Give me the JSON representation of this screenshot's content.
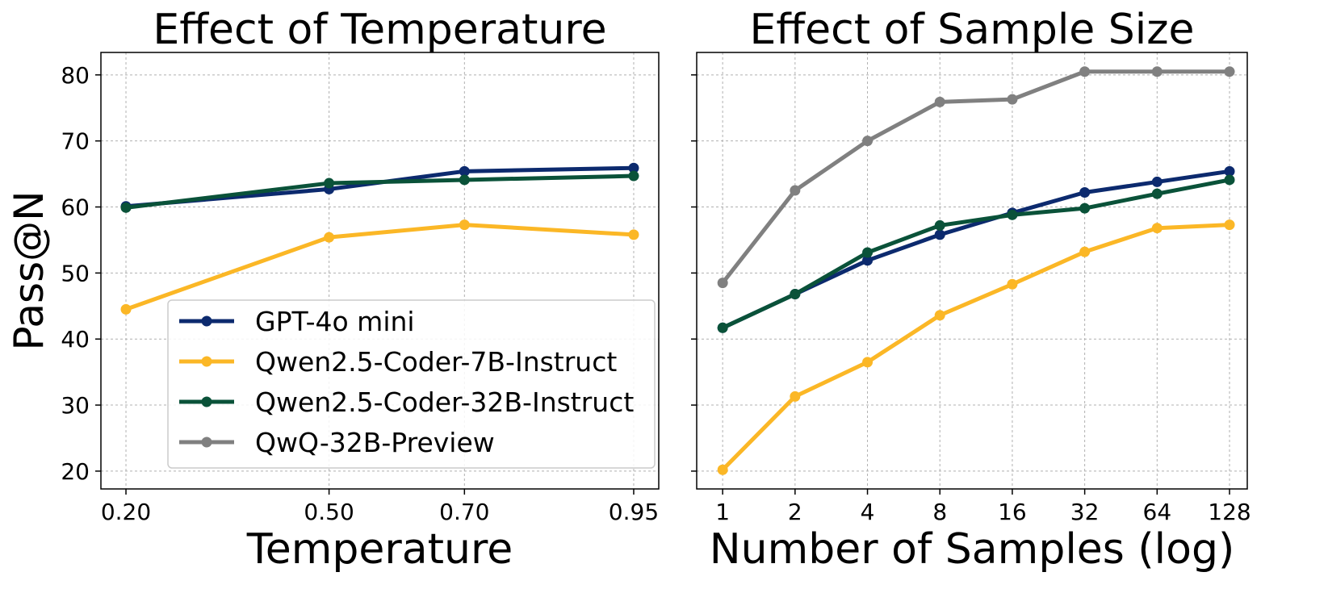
{
  "chart_data": [
    {
      "type": "line",
      "title": "Effect of Temperature",
      "x_label": "Temperature",
      "y_label": "Pass@N",
      "x": [
        0.2,
        0.5,
        0.7,
        0.95
      ],
      "xlim": [
        0.163,
        0.987
      ],
      "xticks": [
        {
          "value": 0.2,
          "label": "0.20"
        },
        {
          "value": 0.5,
          "label": "0.50"
        },
        {
          "value": 0.7,
          "label": "0.70"
        },
        {
          "value": 0.95,
          "label": "0.95"
        }
      ],
      "ylim": [
        17.3,
        83.4
      ],
      "yticks": [
        20,
        30,
        40,
        50,
        60,
        70,
        80
      ],
      "grid": true,
      "legend": "lower right",
      "series": [
        {
          "name": "GPT-4o mini",
          "color": "#0c2a6e",
          "values": [
            60.1,
            62.7,
            65.4,
            65.9
          ]
        },
        {
          "name": "Qwen2.5-Coder-7B-Instruct",
          "color": "#fbb726",
          "values": [
            44.5,
            55.4,
            57.3,
            55.8
          ]
        },
        {
          "name": "Qwen2.5-Coder-32B-Instruct",
          "color": "#0a5239",
          "values": [
            59.9,
            63.6,
            64.1,
            64.7
          ]
        },
        {
          "name": "QwQ-32B-Preview",
          "color": "#808080",
          "values": [
            null,
            null,
            null,
            null
          ]
        }
      ]
    },
    {
      "type": "line",
      "title": "Effect of Sample Size",
      "x_label": "Number of Samples (log)",
      "x": [
        1,
        2,
        4,
        8,
        16,
        32,
        64,
        128
      ],
      "xscale": "log",
      "xlim": [
        0.78,
        151.7
      ],
      "xticks": [
        1,
        2,
        4,
        8,
        16,
        32,
        64,
        128
      ],
      "ylim": [
        17.3,
        83.4
      ],
      "yticks": [
        20,
        30,
        40,
        50,
        60,
        70,
        80
      ],
      "grid": true,
      "series": [
        {
          "color": "#0c2a6e",
          "values": [
            41.7,
            46.8,
            51.9,
            55.8,
            59.1,
            62.2,
            63.8,
            65.4
          ]
        },
        {
          "color": "#fbb726",
          "values": [
            20.2,
            31.3,
            36.5,
            43.6,
            48.3,
            53.2,
            56.8,
            57.3
          ]
        },
        {
          "color": "#0a5239",
          "values": [
            41.7,
            46.8,
            53.1,
            57.2,
            58.8,
            59.8,
            62.0,
            64.1
          ]
        },
        {
          "color": "#808080",
          "values": [
            48.5,
            62.5,
            70.0,
            75.9,
            76.3,
            80.5,
            80.5,
            80.5
          ]
        }
      ]
    }
  ]
}
